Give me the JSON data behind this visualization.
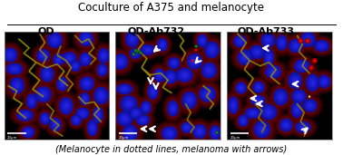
{
  "title": "Coculture of A375 and melanocyte",
  "panel_labels": [
    "QD",
    "QD-Ab732",
    "QD-Ab733"
  ],
  "caption": "(Melanocyte in dotted lines, melanoma with arrows)",
  "title_fontsize": 8.5,
  "panel_label_fontsize": 8,
  "caption_fontsize": 7,
  "title_color": "#000000",
  "background_color": "#ffffff",
  "fig_width": 3.78,
  "fig_height": 1.71,
  "dpi": 100,
  "panel_border_color": "#cccccc",
  "nuclei_color": [
    0.1,
    0.15,
    0.85
  ],
  "dendrite_color": [
    0.55,
    0.55,
    0.0
  ],
  "cytoplasm_color": [
    0.85,
    0.0,
    0.0
  ],
  "green_spot_color": [
    0.0,
    0.9,
    0.0
  ],
  "white_spot_color": [
    1.0,
    1.0,
    0.9
  ],
  "scale_bar_color": "#ffffff"
}
